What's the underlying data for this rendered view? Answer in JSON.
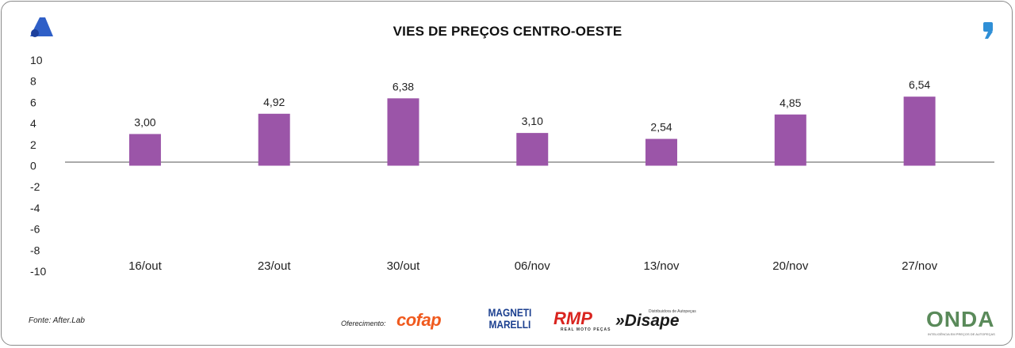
{
  "chart_data": {
    "type": "bar",
    "title": "VIES DE PREÇOS CENTRO-OESTE",
    "categories": [
      "16/out",
      "23/out",
      "30/out",
      "06/nov",
      "13/nov",
      "20/nov",
      "27/nov"
    ],
    "values": [
      3.0,
      4.92,
      6.38,
      3.1,
      2.54,
      4.85,
      6.54
    ],
    "value_labels": [
      "3,00",
      "4,92",
      "6,38",
      "3,10",
      "2,54",
      "4,85",
      "6,54"
    ],
    "ylim": [
      -10,
      10
    ],
    "yticks": [
      10,
      8,
      6,
      4,
      2,
      0,
      -2,
      -4,
      -6,
      -8,
      -10
    ],
    "ytick_labels": [
      "10",
      "8",
      "6",
      "4",
      "2",
      "0",
      "-2",
      "-4",
      "-6",
      "-8",
      "-10"
    ],
    "xlabel": "",
    "ylabel": "",
    "grid": false,
    "bar_color": "#9b55a8"
  },
  "footer": {
    "source": "Fonte: After.Lab",
    "sponsor_label": "Oferecimento:",
    "sponsors": {
      "cofap": "cofap",
      "magneti": "MAGNETI MARELLI",
      "rmp": "RMP",
      "rmp_sub": "REAL MOTO PEÇAS",
      "disape": "»Disape",
      "disape_sub": "Distribuidora de Autopeças",
      "onda": "ONDA",
      "onda_sub": "INTELIGÊNCIA EM PREÇOS DE AUTOPEÇAS"
    }
  },
  "icons": {
    "top_left": "a-logo-icon",
    "top_right": "comma-logo-icon"
  }
}
